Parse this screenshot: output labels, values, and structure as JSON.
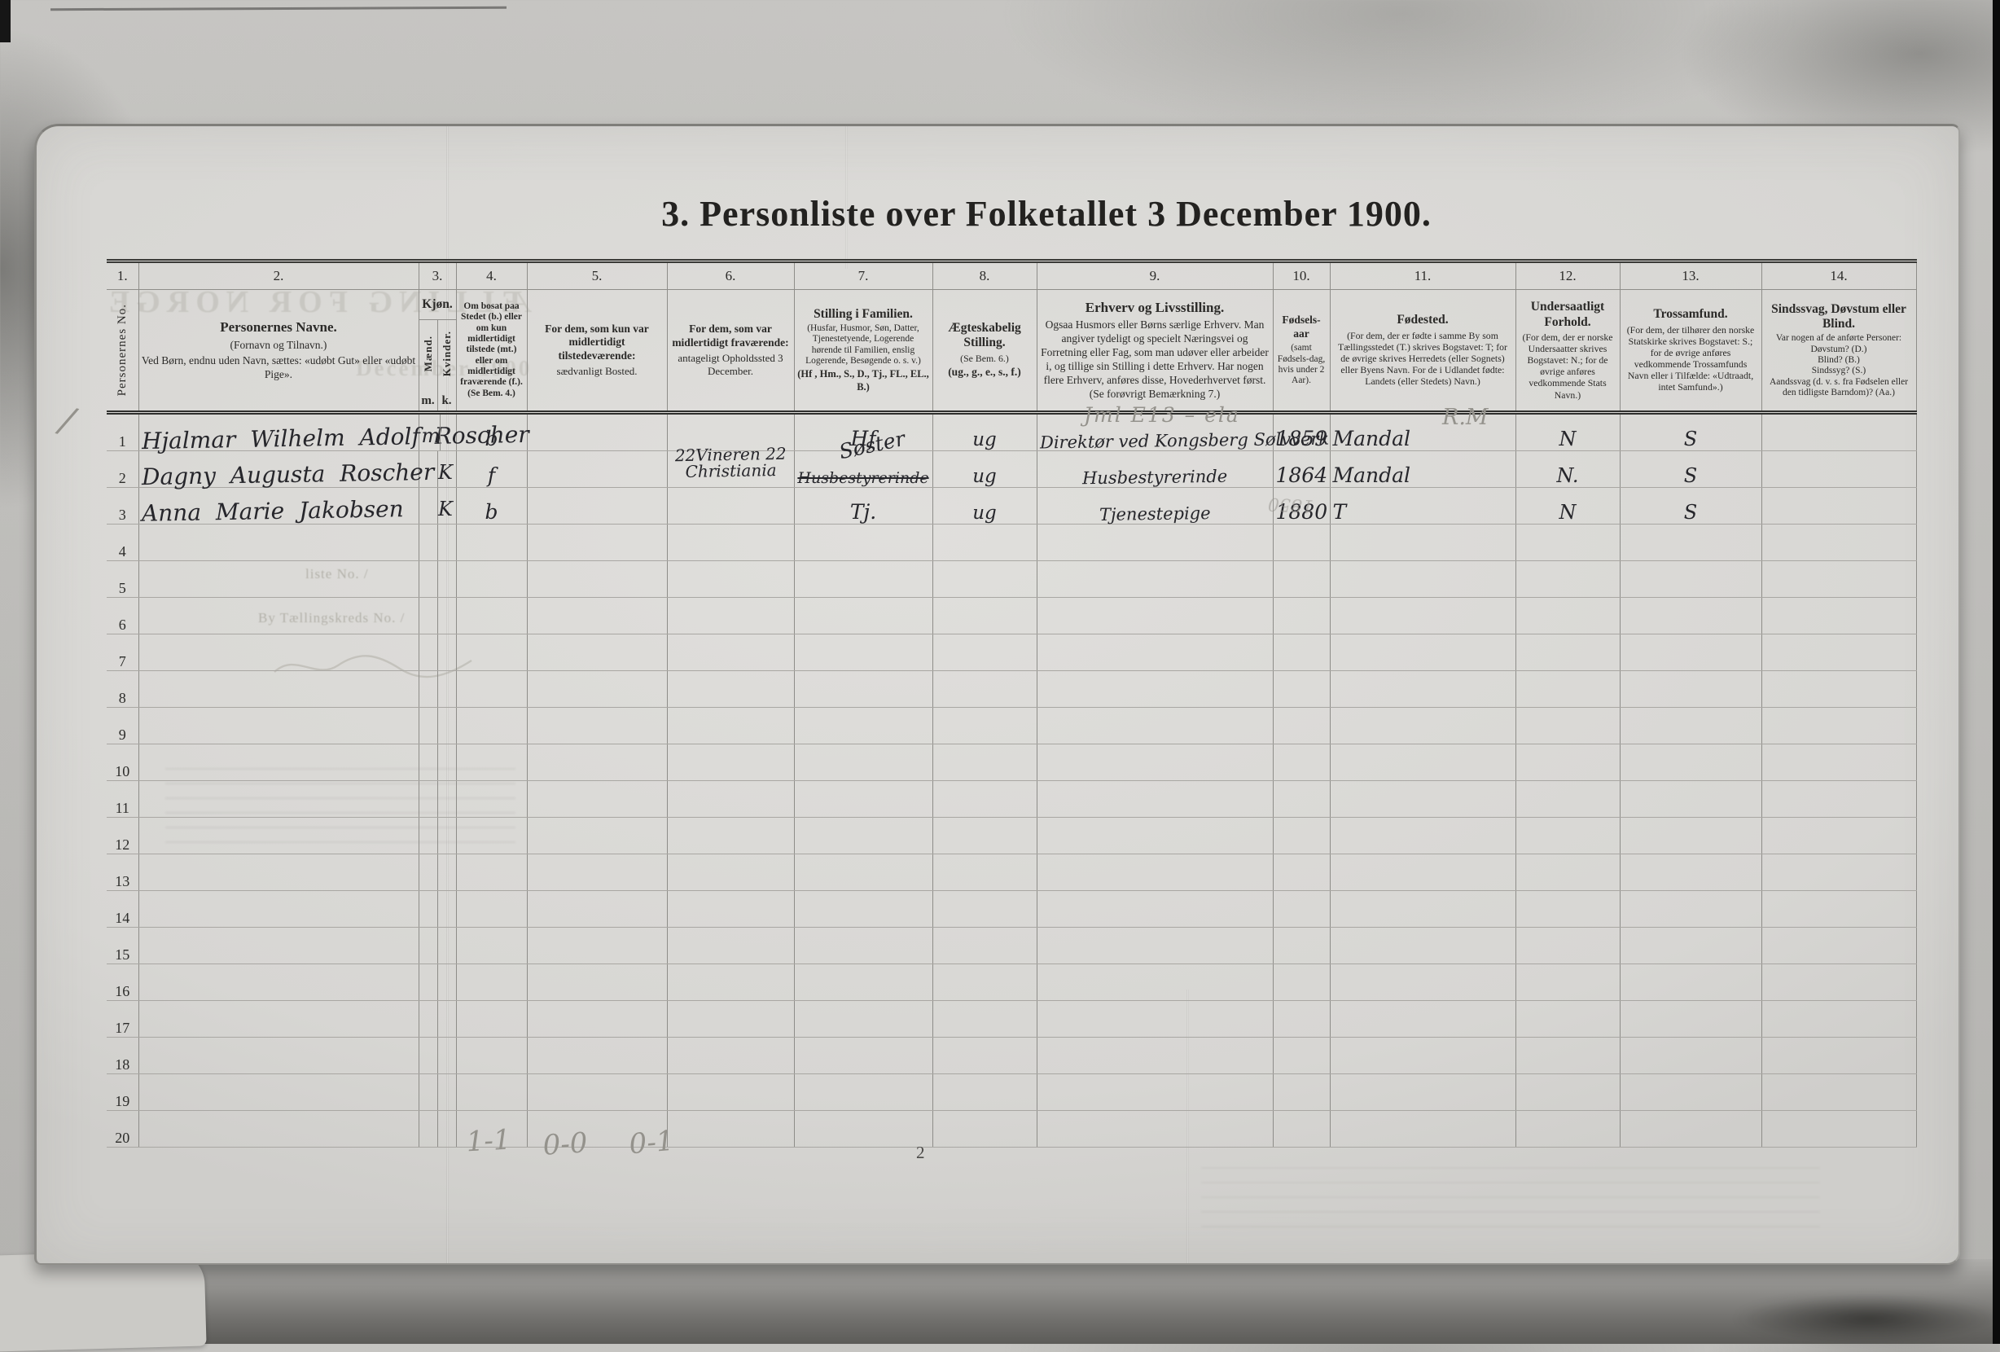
{
  "colors": {
    "paper": "#dcdbd8",
    "ink": "#2b2a28",
    "pencil": "#94928c",
    "background": "#b9b8b5"
  },
  "title": "3. Personliste over Folketallet 3 December 1900.",
  "scan": {
    "page_number": "2",
    "pencil_tally": "/",
    "pencil_note": "Jml E13 – ela",
    "pencil_initials": "R.M",
    "pencil_year_faint": "1850",
    "ghost_caps": "ÆLLING FOR NORGE",
    "ghost_date": "December 1900",
    "ghost_line1": "liste No.  /",
    "ghost_line2": "By   Tællingskreds No.  /"
  },
  "table": {
    "row_count": 20,
    "columns": [
      {
        "no": "1.",
        "vertical": "Personernes No."
      },
      {
        "no": "2.",
        "t": "Personernes Navne.",
        "s1": "(Fornavn og Tilnavn.)",
        "s2": "Ved Børn, endnu uden Navn, sættes: «udøbt Gut» eller «udøbt Pige»."
      },
      {
        "no": "3.",
        "t": "Kjøn.",
        "sub_left": "Mænd.",
        "sub_right": "Kvinder.",
        "foot_left": "m.",
        "foot_right": "k."
      },
      {
        "no": "4.",
        "n": "Om bosat paa Stedet (b.) eller om kun midlertidigt tilstede (mt.) eller om midlertidigt fraværende (f.). (Se Bem. 4.)"
      },
      {
        "no": "5.",
        "b": "For dem, som kun var midlertidigt tilstedeværende:",
        "n": "sædvanligt Bosted."
      },
      {
        "no": "6.",
        "b": "For dem, som var midlertidigt fraværende:",
        "n": "antageligt Opholdssted 3 December."
      },
      {
        "no": "7.",
        "t": "Stilling i Familien.",
        "n": "(Husfar, Husmor, Søn, Datter, Tjenestetyende, Logerende hørende til Familien, enslig Logerende, Besøgende o. s. v.)",
        "a": "(Hf , Hm., S., D., Tj., FL., EL., B.)"
      },
      {
        "no": "8.",
        "t": "Ægteskabelig Stilling.",
        "n": "(Se Bem. 6.)",
        "a": "(ug., g., e., s., f.)"
      },
      {
        "no": "9.",
        "t": "Erhverv og Livsstilling.",
        "n": "Ogsaa Husmors eller Børns særlige Erhverv. Man angiver tydeligt og specielt Næringsvei og Forretning eller Fag, som man udøver eller arbeider i, og tillige sin Stilling i dette Erhverv. Har nogen flere Erhverv, anføres disse, Hovederhvervet først. (Se forøvrigt Bemærkning 7.)"
      },
      {
        "no": "10.",
        "t": "Fødsels-aar",
        "n": "(samt Fødsels-dag, hvis under 2 Aar)."
      },
      {
        "no": "11.",
        "t": "Fødested.",
        "n": "(For dem, der er fødte i samme By som Tællingsstedet (T.) skrives Bogstavet: T; for de øvrige skrives Herredets (eller Sognets) eller Byens Navn. For de i Udlandet fødte: Landets (eller Stedets) Navn.)"
      },
      {
        "no": "12.",
        "t": "Undersaatligt Forhold.",
        "n": "(For dem, der er norske Undersaatter skrives Bogstavet: N.; for de øvrige anføres vedkommende Stats Navn.)"
      },
      {
        "no": "13.",
        "t": "Trossamfund.",
        "n": "(For dem, der tilhører den norske Statskirke skrives Bogstavet: S.; for de øvrige anføres vedkommende Trossamfunds Navn eller i Tilfælde: «Udtraadt, intet Samfund».)"
      },
      {
        "no": "14.",
        "t": "Sindssvag, Døvstum eller Blind.",
        "n": "Var nogen af de anførte Personer:\nDøvstum?  (D.)\nBlind?  (B.)\nSindssyg?  (S.)\nAandssvag (d. v. s. fra Fødselen eller den tidligste Barndom)? (Aa.)"
      }
    ],
    "entries": [
      {
        "name": "Hjalmar Wilhelm Adolf Roscher",
        "kjon_m": "m",
        "kjon_k": "",
        "bosat": "b",
        "bosted": "",
        "opholdssted": [],
        "stilling": "Hf",
        "stilling_struck": "",
        "aegteskab": "ug",
        "erhverv": "Direktør ved Kongsberg Sølvverk",
        "aar": "1859",
        "fodested": "Mandal",
        "undersaat": "N",
        "tro": "S",
        "sind": ""
      },
      {
        "name": "Dagny Augusta Roscher",
        "kjon_m": "",
        "kjon_k": "K",
        "bosat": "f",
        "bosted": "",
        "opholdssted": [
          "22Vineren 22",
          "Christiania"
        ],
        "stilling": "Søster",
        "stilling_struck": "Husbestyrerinde",
        "aegteskab": "ug",
        "erhverv": "Husbestyrerinde",
        "aar": "1864",
        "fodested": "Mandal",
        "undersaat": "N.",
        "tro": "S",
        "sind": ""
      },
      {
        "name": "Anna Marie Jakobsen",
        "kjon_m": "",
        "kjon_k": "K",
        "bosat": "b",
        "bosted": "",
        "opholdssted": [],
        "stilling": "Tj.",
        "stilling_struck": "",
        "aegteskab": "ug",
        "erhverv": "Tjenestepige",
        "aar": "1880",
        "fodested": "T",
        "undersaat": "N",
        "tro": "S",
        "sind": ""
      }
    ],
    "sums": {
      "c4": "1-1",
      "c5": "0-0",
      "c6": "0-1"
    }
  }
}
